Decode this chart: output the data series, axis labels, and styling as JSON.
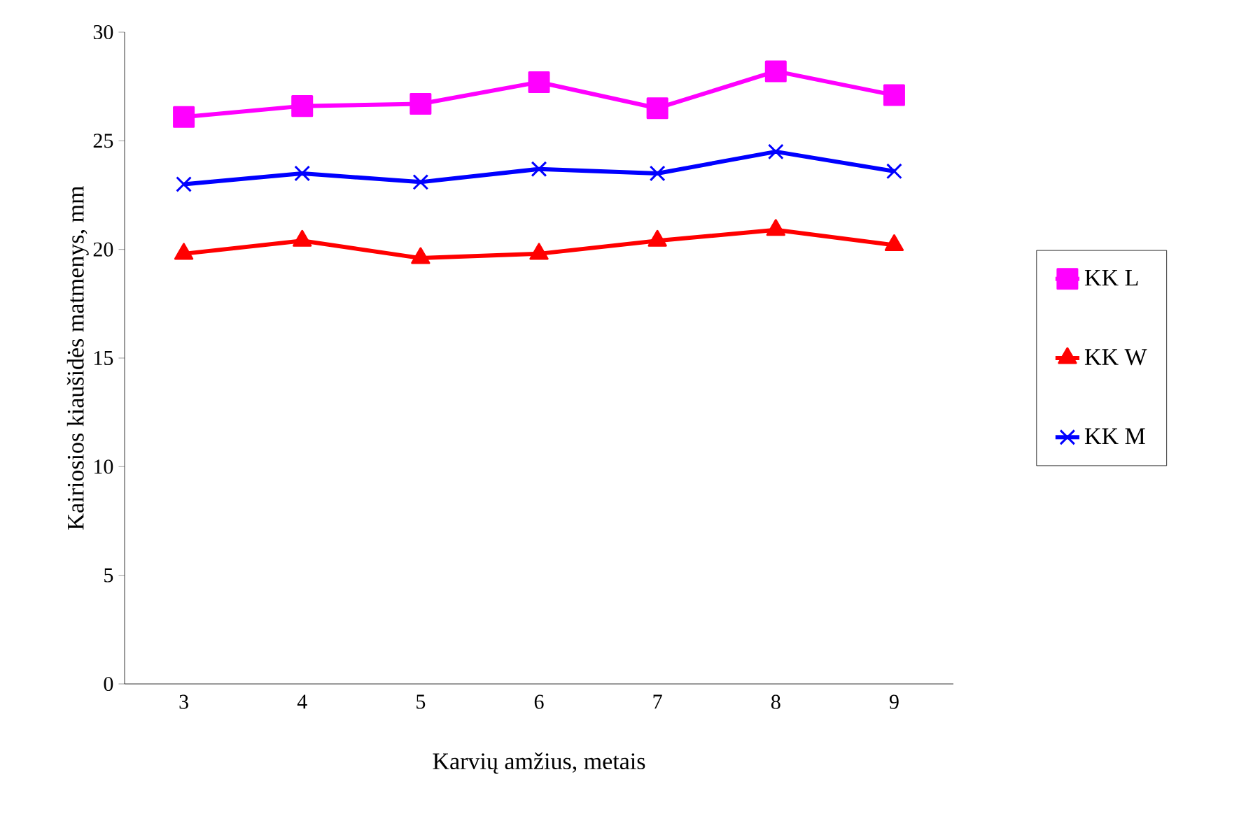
{
  "chart_data": {
    "type": "line",
    "xlabel": "Karvių amžius, metais",
    "ylabel": "Kairiosios kiaušidės matmenys, mm",
    "categories": [
      "3",
      "4",
      "5",
      "6",
      "7",
      "8",
      "9"
    ],
    "series": [
      {
        "name": "KK L",
        "color": "#ff00ff",
        "marker": "square",
        "values": [
          26.1,
          26.6,
          26.7,
          27.7,
          26.5,
          28.2,
          27.1
        ]
      },
      {
        "name": "KK W",
        "color": "#ff0000",
        "marker": "triangle",
        "values": [
          19.8,
          20.4,
          19.6,
          19.8,
          20.4,
          20.9,
          20.2
        ]
      },
      {
        "name": "KK M",
        "color": "#0000ff",
        "marker": "cross",
        "values": [
          23.0,
          23.5,
          23.1,
          23.7,
          23.5,
          24.5,
          23.6
        ]
      }
    ],
    "ylim": [
      0,
      30
    ],
    "yticks": [
      0,
      5,
      10,
      15,
      20,
      25,
      30
    ],
    "legend": "right",
    "grid": false,
    "line_style": "solid"
  }
}
